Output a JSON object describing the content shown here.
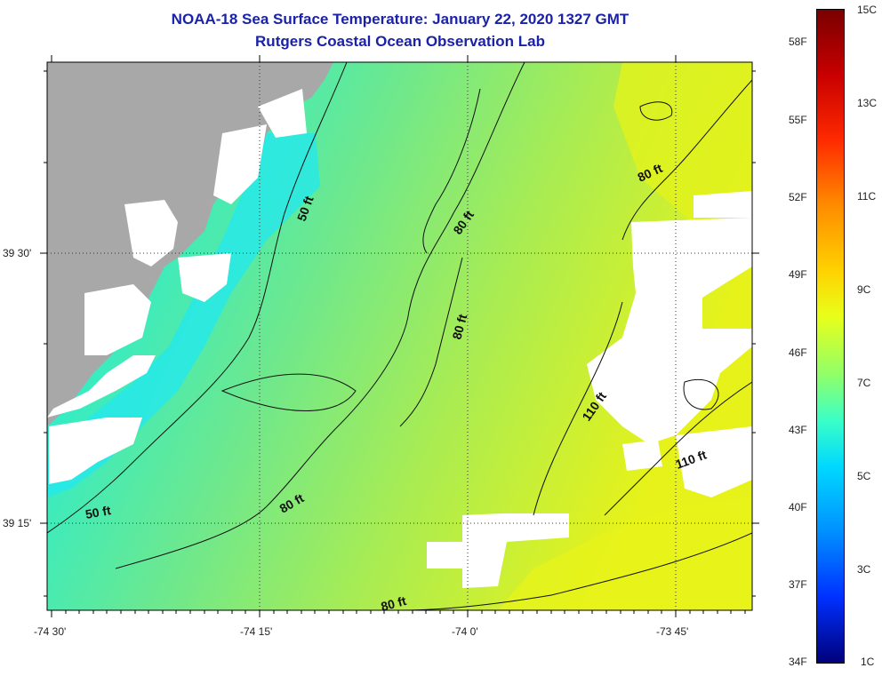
{
  "header": {
    "title": "NOAA-18 Sea Surface Temperature:  January 22, 2020 1327 GMT",
    "subtitle": "Rutgers Coastal Ocean Observation Lab"
  },
  "axes": {
    "x_ticks": [
      "-74 30'",
      "-74 15'",
      "-74 0'",
      "-73 45'"
    ],
    "y_ticks": [
      "39 30'",
      "39 15'"
    ]
  },
  "colorbar": {
    "fahrenheit": [
      "58F",
      "55F",
      "52F",
      "49F",
      "46F",
      "43F",
      "40F",
      "37F",
      "34F"
    ],
    "celsius": [
      "15C",
      "13C",
      "11C",
      "9C",
      "7C",
      "5C",
      "3C",
      "1C"
    ]
  },
  "contours": {
    "labels": [
      "50 ft",
      "50 ft",
      "80 ft",
      "80 ft",
      "80 ft",
      "80 ft",
      "80 ft",
      "110 ft",
      "110 ft"
    ]
  },
  "colors": {
    "land": "#a8a8a8",
    "no_data": "#ffffff",
    "title": "#1a22a8",
    "cold_water": "#1ee0f0",
    "mid_water": "#6fe88a",
    "warm_water": "#d8f020"
  }
}
